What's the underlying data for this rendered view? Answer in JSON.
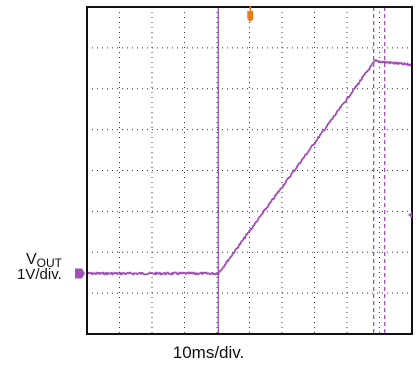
{
  "chart_data": {
    "type": "line",
    "title": "",
    "xlabel": "10ms/div.",
    "ylabel": "",
    "channel": {
      "name_main": "V",
      "name_sub": "OUT",
      "scale": "1V/div."
    },
    "grid": true,
    "x_divisions": 10,
    "y_divisions": 8,
    "xlim": [
      0,
      100
    ],
    "ylim": [
      0,
      8
    ],
    "ground_marker_level": 0,
    "series": [
      {
        "color": "#a04fb6",
        "x": [
          0,
          40.4,
          88.6,
          100
        ],
        "y": [
          0,
          0,
          5.2,
          5.1
        ]
      }
    ],
    "cursors_x": [
      40.4,
      88.2,
      91.6
    ],
    "colors": {
      "trace": "#a04fb6",
      "grid": "#333333",
      "frame": "#111111",
      "trigger_marker": "#e67b1c"
    }
  }
}
